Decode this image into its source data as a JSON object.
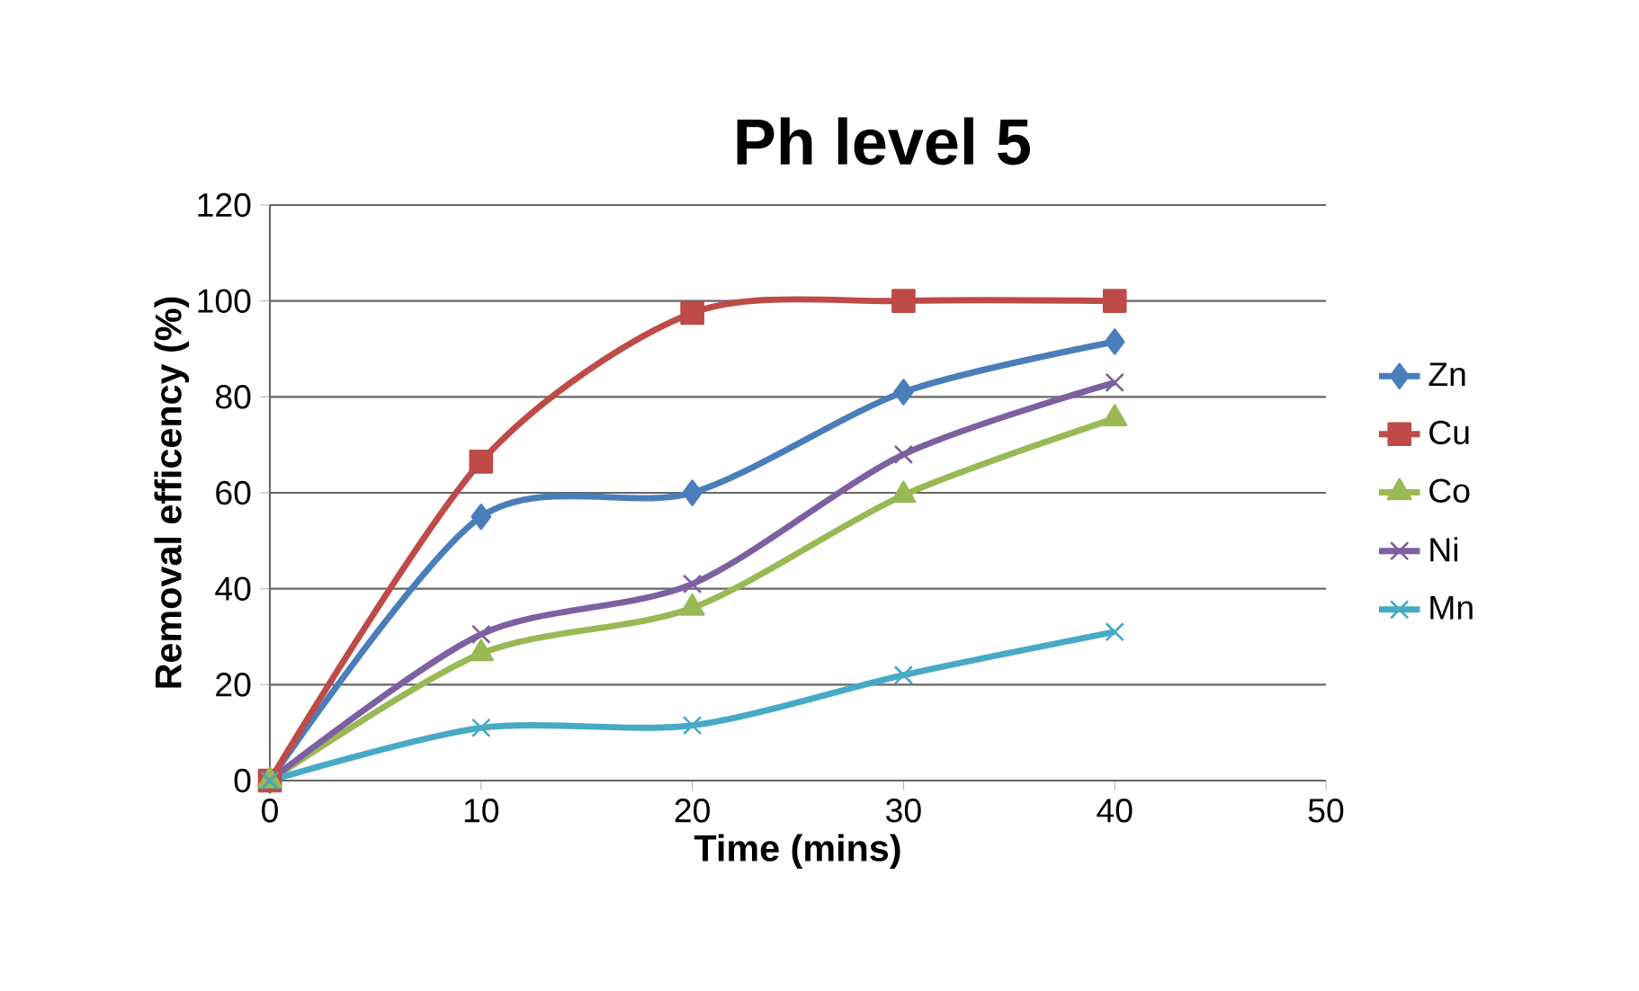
{
  "chart_data": {
    "type": "line",
    "title": "Ph level 5",
    "xlabel": "Time (mins)",
    "ylabel": "Removal efficency (%)",
    "x": [
      0,
      10,
      20,
      30,
      40
    ],
    "series": [
      {
        "name": "Zn",
        "color": "#4a7ebb",
        "marker": "diamond",
        "values": [
          0,
          55,
          60,
          81,
          91.5
        ]
      },
      {
        "name": "Cu",
        "color": "#be4b48",
        "marker": "square",
        "values": [
          0,
          66.5,
          97.5,
          100,
          100
        ]
      },
      {
        "name": "Co",
        "color": "#98b954",
        "marker": "triangle",
        "values": [
          0,
          26.5,
          36,
          59.5,
          75.5
        ]
      },
      {
        "name": "Ni",
        "color": "#7d60a0",
        "marker": "cross",
        "values": [
          0,
          30.5,
          41,
          68,
          83
        ]
      },
      {
        "name": "Mn",
        "color": "#46aac5",
        "marker": "cross",
        "values": [
          0,
          11,
          11.5,
          22,
          31
        ]
      }
    ],
    "xlim": [
      0,
      50
    ],
    "xticks": [
      0,
      10,
      20,
      30,
      40,
      50
    ],
    "ylim": [
      0,
      120
    ],
    "yticks": [
      0,
      20,
      40,
      60,
      80,
      100,
      120
    ],
    "grid": "y",
    "legend": "right",
    "line_style": "solid"
  }
}
